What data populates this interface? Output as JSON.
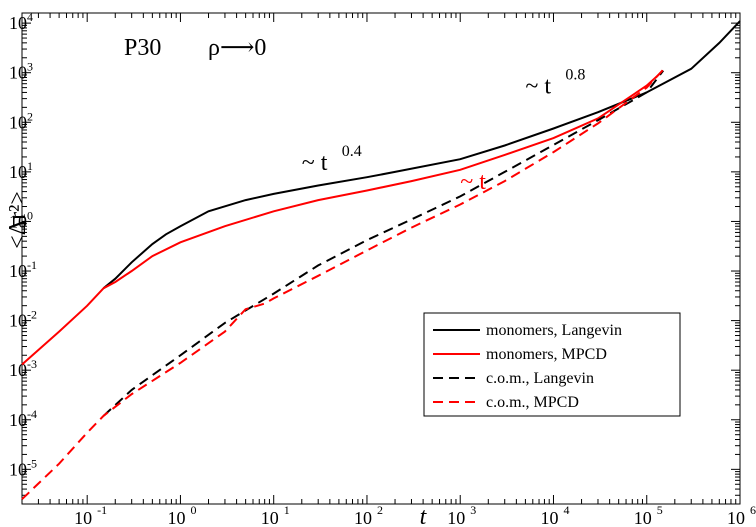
{
  "chart_data": {
    "type": "line",
    "title": "P30",
    "subtitle": "ρ⟶0",
    "xlabel": "t",
    "ylabel": "<Δr²>",
    "xscale": "log",
    "yscale": "log",
    "xlim": [
      0.02,
      1000000
    ],
    "ylim": [
      2e-06,
      16000
    ],
    "x_ticks": [
      {
        "base": "10",
        "exp": "-1",
        "value": 0.1
      },
      {
        "base": "10",
        "exp": "0",
        "value": 1
      },
      {
        "base": "10",
        "exp": "1",
        "value": 10
      },
      {
        "base": "10",
        "exp": "2",
        "value": 100
      },
      {
        "base": "10",
        "exp": "3",
        "value": 1000
      },
      {
        "base": "10",
        "exp": "4",
        "value": 10000
      },
      {
        "base": "10",
        "exp": "5",
        "value": 100000
      },
      {
        "base": "10",
        "exp": "6",
        "value": 1000000
      }
    ],
    "y_ticks": [
      {
        "base": "10",
        "exp": "-5",
        "value": 1e-05
      },
      {
        "base": "10",
        "exp": "-4",
        "value": 0.0001
      },
      {
        "base": "10",
        "exp": "-3",
        "value": 0.001
      },
      {
        "base": "10",
        "exp": "-2",
        "value": 0.01
      },
      {
        "base": "10",
        "exp": "-1",
        "value": 0.1
      },
      {
        "base": "10",
        "exp": "0",
        "value": 1
      },
      {
        "base": "10",
        "exp": "1",
        "value": 10
      },
      {
        "base": "10",
        "exp": "2",
        "value": 100
      },
      {
        "base": "10",
        "exp": "3",
        "value": 1000
      },
      {
        "base": "10",
        "exp": "4",
        "value": 10000
      }
    ],
    "series": [
      {
        "name": "monomers, Langevin",
        "color": "#000000",
        "dash": "solid",
        "points": [
          [
            0.15,
            0.045
          ],
          [
            0.2,
            0.07
          ],
          [
            0.3,
            0.15
          ],
          [
            0.5,
            0.35
          ],
          [
            0.7,
            0.55
          ],
          [
            1,
            0.8
          ],
          [
            2,
            1.6
          ],
          [
            5,
            2.7
          ],
          [
            10,
            3.6
          ],
          [
            30,
            5.3
          ],
          [
            100,
            7.8
          ],
          [
            200,
            10
          ],
          [
            1000,
            18
          ],
          [
            3000,
            34
          ],
          [
            10000,
            75
          ],
          [
            30000,
            160
          ],
          [
            100000,
            400
          ],
          [
            300000,
            1200
          ],
          [
            600000,
            4000
          ],
          [
            1000000,
            11000
          ]
        ]
      },
      {
        "name": "monomers, MPCD",
        "color": "#ff0000",
        "dash": "solid",
        "points": [
          [
            0.02,
            0.0013
          ],
          [
            0.05,
            0.006
          ],
          [
            0.1,
            0.02
          ],
          [
            0.15,
            0.045
          ],
          [
            0.2,
            0.06
          ],
          [
            0.3,
            0.1
          ],
          [
            0.5,
            0.2
          ],
          [
            1,
            0.38
          ],
          [
            3,
            0.8
          ],
          [
            10,
            1.6
          ],
          [
            30,
            2.7
          ],
          [
            100,
            4.2
          ],
          [
            300,
            6.5
          ],
          [
            1000,
            11
          ],
          [
            3000,
            22
          ],
          [
            10000,
            48
          ],
          [
            30000,
            120
          ],
          [
            100000,
            550
          ],
          [
            150000,
            1100
          ]
        ]
      },
      {
        "name": "c.o.m., Langevin",
        "color": "#000000",
        "dash": "dashed",
        "points": [
          [
            0.15,
            0.00012
          ],
          [
            0.3,
            0.0004
          ],
          [
            1,
            0.002
          ],
          [
            3,
            0.009
          ],
          [
            10,
            0.035
          ],
          [
            30,
            0.13
          ],
          [
            100,
            0.42
          ],
          [
            300,
            1.1
          ],
          [
            1000,
            3.2
          ],
          [
            3000,
            10
          ],
          [
            10000,
            35
          ],
          [
            30000,
            110
          ],
          [
            100000,
            400
          ],
          [
            150000,
            1100
          ]
        ]
      },
      {
        "name": "c.o.m., MPCD",
        "color": "#ff0000",
        "dash": "dashed",
        "points": [
          [
            0.02,
            2.5e-06
          ],
          [
            0.05,
            1.3e-05
          ],
          [
            0.1,
            5.5e-05
          ],
          [
            0.15,
            0.00012
          ],
          [
            0.3,
            0.00033
          ],
          [
            1,
            0.0014
          ],
          [
            3,
            0.006
          ],
          [
            5,
            0.017
          ],
          [
            8,
            0.022
          ],
          [
            10,
            0.028
          ],
          [
            30,
            0.08
          ],
          [
            100,
            0.26
          ],
          [
            300,
            0.75
          ],
          [
            1000,
            2.2
          ],
          [
            3000,
            6.5
          ],
          [
            10000,
            25
          ],
          [
            30000,
            95
          ],
          [
            100000,
            500
          ],
          [
            150000,
            1150
          ]
        ]
      }
    ],
    "annotations": [
      {
        "text": "~ t",
        "exp": "0.4",
        "color": "#000000",
        "x": 20,
        "y": 11
      },
      {
        "text": "~ t",
        "exp": "0.8",
        "color": "#000000",
        "x": 5000,
        "y": 380
      },
      {
        "text": "~ t",
        "exp": "",
        "color": "#ff0000",
        "x": 1000,
        "y": 4.5
      }
    ],
    "legend": {
      "position": "bottom-right"
    }
  }
}
